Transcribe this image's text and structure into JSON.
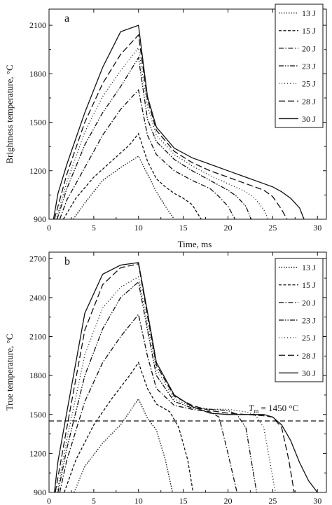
{
  "chart_data": [
    {
      "type": "line",
      "panel_label": "a",
      "xlabel": "Time, ms",
      "ylabel": "Brightness temperature, °C",
      "xlim": [
        0,
        31
      ],
      "ylim": [
        900,
        2200
      ],
      "xticks": [
        0,
        5,
        10,
        15,
        20,
        25,
        30
      ],
      "yticks": [
        900,
        1200,
        1500,
        1800,
        2100
      ],
      "legend_position": "top-right",
      "series": [
        {
          "name": "13 J",
          "dash": "dotted",
          "points": [
            [
              2.7,
              900
            ],
            [
              4,
              1000
            ],
            [
              6,
              1140
            ],
            [
              8,
              1220
            ],
            [
              10,
              1290
            ],
            [
              11,
              1180
            ],
            [
              12,
              1070
            ],
            [
              13,
              980
            ],
            [
              14,
              900
            ]
          ]
        },
        {
          "name": "15 J",
          "dash": "short-dash",
          "points": [
            [
              1.6,
              900
            ],
            [
              3,
              1030
            ],
            [
              5,
              1160
            ],
            [
              7,
              1260
            ],
            [
              9,
              1360
            ],
            [
              10,
              1430
            ],
            [
              11,
              1260
            ],
            [
              12,
              1150
            ],
            [
              13,
              1100
            ],
            [
              14,
              1060
            ],
            [
              15,
              1030
            ],
            [
              16,
              990
            ],
            [
              17,
              900
            ]
          ]
        },
        {
          "name": "20 J",
          "dash": "dash-dot",
          "points": [
            [
              1.2,
              900
            ],
            [
              2,
              1020
            ],
            [
              4,
              1220
            ],
            [
              6,
              1420
            ],
            [
              8,
              1580
            ],
            [
              10,
              1700
            ],
            [
              11,
              1420
            ],
            [
              12,
              1300
            ],
            [
              14,
              1200
            ],
            [
              16,
              1140
            ],
            [
              18,
              1090
            ],
            [
              19,
              1040
            ],
            [
              20,
              980
            ],
            [
              20.8,
              900
            ]
          ]
        },
        {
          "name": "23 J",
          "dash": "dash-dot-dot",
          "points": [
            [
              0.9,
              900
            ],
            [
              2,
              1090
            ],
            [
              4,
              1360
            ],
            [
              6,
              1560
            ],
            [
              8,
              1720
            ],
            [
              10,
              1900
            ],
            [
              11,
              1520
            ],
            [
              12,
              1380
            ],
            [
              14,
              1270
            ],
            [
              16,
              1200
            ],
            [
              18,
              1140
            ],
            [
              20,
              1080
            ],
            [
              21,
              1040
            ],
            [
              22,
              980
            ],
            [
              22.6,
              900
            ]
          ]
        },
        {
          "name": "25 J",
          "dash": "fine-dot",
          "points": [
            [
              0.8,
              900
            ],
            [
              2,
              1130
            ],
            [
              4,
              1440
            ],
            [
              6,
              1660
            ],
            [
              8,
              1820
            ],
            [
              10,
              1960
            ],
            [
              11,
              1600
            ],
            [
              12,
              1420
            ],
            [
              14,
              1300
            ],
            [
              16,
              1230
            ],
            [
              18,
              1170
            ],
            [
              20,
              1120
            ],
            [
              22,
              1070
            ],
            [
              23,
              1030
            ],
            [
              24,
              960
            ],
            [
              24.5,
              900
            ]
          ]
        },
        {
          "name": "28 J",
          "dash": "long-dash",
          "points": [
            [
              0.6,
              900
            ],
            [
              2,
              1180
            ],
            [
              4,
              1500
            ],
            [
              6,
              1740
            ],
            [
              8,
              1920
            ],
            [
              10,
              2040
            ],
            [
              11,
              1640
            ],
            [
              12,
              1450
            ],
            [
              14,
              1320
            ],
            [
              16,
              1250
            ],
            [
              18,
              1200
            ],
            [
              20,
              1160
            ],
            [
              22,
              1120
            ],
            [
              24,
              1080
            ],
            [
              25,
              1040
            ],
            [
              26,
              960
            ],
            [
              26.6,
              900
            ]
          ]
        },
        {
          "name": "30 J",
          "dash": "solid",
          "points": [
            [
              0.5,
              900
            ],
            [
              1,
              1060
            ],
            [
              2,
              1240
            ],
            [
              4,
              1560
            ],
            [
              6,
              1840
            ],
            [
              8,
              2060
            ],
            [
              10,
              2100
            ],
            [
              11,
              1660
            ],
            [
              12,
              1470
            ],
            [
              14,
              1340
            ],
            [
              16,
              1280
            ],
            [
              18,
              1240
            ],
            [
              20,
              1200
            ],
            [
              22,
              1160
            ],
            [
              24,
              1120
            ],
            [
              25,
              1100
            ],
            [
              26,
              1070
            ],
            [
              27,
              1030
            ],
            [
              28,
              970
            ],
            [
              28.5,
              900
            ]
          ]
        }
      ]
    },
    {
      "type": "line",
      "panel_label": "b",
      "xlabel": "Time, ms",
      "ylabel": "True temperature, °C",
      "xlim": [
        0,
        31
      ],
      "ylim": [
        900,
        2750
      ],
      "xticks": [
        0,
        5,
        10,
        15,
        20,
        25,
        30
      ],
      "yticks": [
        900,
        1200,
        1500,
        1800,
        2100,
        2400,
        2700
      ],
      "legend_position": "top-right",
      "reference_line": {
        "y": 1450,
        "label_main": "T",
        "label_sub": "m",
        "label_rest": " = 1450 °C"
      },
      "series": [
        {
          "name": "13 J",
          "dash": "dotted",
          "points": [
            [
              2.8,
              900
            ],
            [
              4,
              1100
            ],
            [
              6,
              1280
            ],
            [
              8,
              1420
            ],
            [
              10,
              1620
            ],
            [
              11,
              1470
            ],
            [
              12,
              1380
            ],
            [
              13,
              1150
            ],
            [
              13.8,
              900
            ]
          ]
        },
        {
          "name": "15 J",
          "dash": "short-dash",
          "points": [
            [
              1.7,
              900
            ],
            [
              3,
              1150
            ],
            [
              5,
              1420
            ],
            [
              7,
              1620
            ],
            [
              9,
              1800
            ],
            [
              10,
              1900
            ],
            [
              11,
              1700
            ],
            [
              12,
              1580
            ],
            [
              13.5,
              1520
            ],
            [
              14.5,
              1400
            ],
            [
              15.5,
              1150
            ],
            [
              16.1,
              900
            ]
          ]
        },
        {
          "name": "20 J",
          "dash": "dash-dot",
          "points": [
            [
              1.2,
              900
            ],
            [
              2,
              1150
            ],
            [
              4,
              1600
            ],
            [
              6,
              1900
            ],
            [
              8,
              2100
            ],
            [
              10,
              2270
            ],
            [
              11,
              1950
            ],
            [
              12,
              1700
            ],
            [
              14,
              1570
            ],
            [
              16,
              1540
            ],
            [
              18,
              1520
            ],
            [
              19,
              1480
            ],
            [
              20,
              1200
            ],
            [
              21,
              900
            ]
          ]
        },
        {
          "name": "23 J",
          "dash": "dash-dot-dot",
          "points": [
            [
              1,
              900
            ],
            [
              2,
              1240
            ],
            [
              4,
              1800
            ],
            [
              6,
              2160
            ],
            [
              8,
              2400
            ],
            [
              10,
              2520
            ],
            [
              11,
              2150
            ],
            [
              12,
              1800
            ],
            [
              14,
              1600
            ],
            [
              16,
              1550
            ],
            [
              18,
              1540
            ],
            [
              20,
              1530
            ],
            [
              21,
              1500
            ],
            [
              22,
              1400
            ],
            [
              23.2,
              900
            ]
          ]
        },
        {
          "name": "25 J",
          "dash": "fine-dot",
          "points": [
            [
              0.9,
              900
            ],
            [
              2,
              1310
            ],
            [
              4,
              1960
            ],
            [
              6,
              2320
            ],
            [
              8,
              2480
            ],
            [
              10,
              2560
            ],
            [
              11,
              2200
            ],
            [
              12,
              1850
            ],
            [
              14,
              1620
            ],
            [
              16,
              1560
            ],
            [
              18,
              1540
            ],
            [
              20,
              1540
            ],
            [
              22,
              1520
            ],
            [
              23,
              1500
            ],
            [
              24,
              1400
            ],
            [
              25.3,
              900
            ]
          ]
        },
        {
          "name": "28 J",
          "dash": "long-dash",
          "points": [
            [
              0.7,
              900
            ],
            [
              2,
              1400
            ],
            [
              4,
              2150
            ],
            [
              6,
              2500
            ],
            [
              8,
              2630
            ],
            [
              10,
              2660
            ],
            [
              11,
              2260
            ],
            [
              12,
              1880
            ],
            [
              14,
              1640
            ],
            [
              16,
              1570
            ],
            [
              18,
              1530
            ],
            [
              20,
              1510
            ],
            [
              22,
              1500
            ],
            [
              24,
              1490
            ],
            [
              25,
              1480
            ],
            [
              26,
              1400
            ],
            [
              26.8,
              1150
            ],
            [
              27.4,
              900
            ]
          ]
        },
        {
          "name": "30 J",
          "dash": "solid",
          "points": [
            [
              0.6,
              900
            ],
            [
              1,
              1140
            ],
            [
              2,
              1520
            ],
            [
              4,
              2280
            ],
            [
              6,
              2580
            ],
            [
              8,
              2650
            ],
            [
              10,
              2670
            ],
            [
              11,
              2290
            ],
            [
              12,
              1900
            ],
            [
              14,
              1650
            ],
            [
              16,
              1560
            ],
            [
              18,
              1510
            ],
            [
              20,
              1500
            ],
            [
              22,
              1500
            ],
            [
              24,
              1500
            ],
            [
              25,
              1480
            ],
            [
              26,
              1420
            ],
            [
              27,
              1300
            ],
            [
              28,
              1130
            ],
            [
              29,
              990
            ],
            [
              30,
              900
            ]
          ]
        }
      ]
    }
  ]
}
